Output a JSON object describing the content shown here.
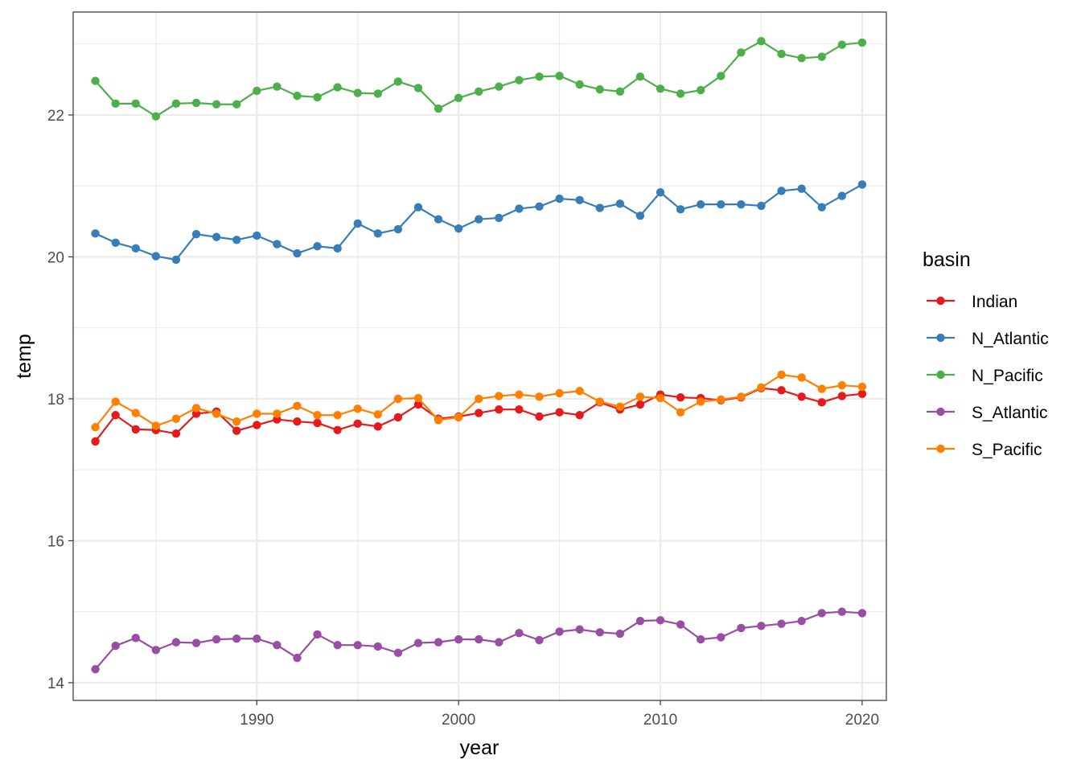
{
  "chart_data": {
    "type": "line",
    "xlabel": "year",
    "ylabel": "temp",
    "xlim": [
      1980.9,
      2021.2
    ],
    "ylim": [
      13.75,
      23.45
    ],
    "x_ticks": [
      1990,
      2000,
      2010,
      2020
    ],
    "y_ticks": [
      14,
      16,
      18,
      20,
      22
    ],
    "x_tick_labels": [
      "1990",
      "2000",
      "2010",
      "2020"
    ],
    "y_tick_labels": [
      "14",
      "16",
      "18",
      "20",
      "22"
    ],
    "grid": true,
    "markers": true,
    "legend": {
      "title": "basin",
      "position": "right"
    },
    "x": [
      1982,
      1983,
      1984,
      1985,
      1986,
      1987,
      1988,
      1989,
      1990,
      1991,
      1992,
      1993,
      1994,
      1995,
      1996,
      1997,
      1998,
      1999,
      2000,
      2001,
      2002,
      2003,
      2004,
      2005,
      2006,
      2007,
      2008,
      2009,
      2010,
      2011,
      2012,
      2013,
      2014,
      2015,
      2016,
      2017,
      2018,
      2019,
      2020
    ],
    "series": [
      {
        "name": "Indian",
        "color": "#e41a1c",
        "values": [
          17.4,
          17.77,
          17.57,
          17.56,
          17.51,
          17.79,
          17.82,
          17.55,
          17.63,
          17.71,
          17.68,
          17.66,
          17.56,
          17.65,
          17.61,
          17.74,
          17.92,
          17.72,
          17.75,
          17.8,
          17.85,
          17.85,
          17.75,
          17.81,
          17.77,
          17.95,
          17.85,
          17.92,
          18.06,
          18.02,
          18.01,
          17.98,
          18.02,
          18.15,
          18.12,
          18.03,
          17.95,
          18.04,
          18.07
        ]
      },
      {
        "name": "N_Atlantic",
        "color": "#377eb8",
        "values": [
          20.33,
          20.2,
          20.12,
          20.01,
          19.96,
          20.32,
          20.28,
          20.24,
          20.3,
          20.18,
          20.05,
          20.15,
          20.12,
          20.47,
          20.33,
          20.39,
          20.7,
          20.53,
          20.4,
          20.53,
          20.55,
          20.68,
          20.71,
          20.82,
          20.8,
          20.69,
          20.75,
          20.58,
          20.91,
          20.67,
          20.74,
          20.74,
          20.74,
          20.72,
          20.93,
          20.96,
          20.7,
          20.86,
          21.02
        ]
      },
      {
        "name": "N_Pacific",
        "color": "#4daf4a",
        "values": [
          22.48,
          22.16,
          22.16,
          21.98,
          22.16,
          22.17,
          22.15,
          22.15,
          22.34,
          22.4,
          22.27,
          22.25,
          22.39,
          22.31,
          22.3,
          22.47,
          22.38,
          22.09,
          22.24,
          22.33,
          22.4,
          22.49,
          22.54,
          22.55,
          22.43,
          22.36,
          22.33,
          22.54,
          22.37,
          22.3,
          22.35,
          22.55,
          22.88,
          23.04,
          22.86,
          22.8,
          22.82,
          22.99,
          23.02
        ]
      },
      {
        "name": "S_Atlantic",
        "color": "#984ea3",
        "values": [
          14.19,
          14.52,
          14.63,
          14.46,
          14.57,
          14.56,
          14.61,
          14.62,
          14.62,
          14.53,
          14.35,
          14.68,
          14.53,
          14.53,
          14.51,
          14.42,
          14.56,
          14.57,
          14.61,
          14.61,
          14.57,
          14.7,
          14.6,
          14.72,
          14.75,
          14.71,
          14.69,
          14.87,
          14.88,
          14.82,
          14.61,
          14.64,
          14.77,
          14.8,
          14.83,
          14.87,
          14.98,
          15.0,
          14.98
        ]
      },
      {
        "name": "S_Pacific",
        "color": "#ff7f00",
        "values": [
          17.6,
          17.96,
          17.8,
          17.62,
          17.72,
          17.87,
          17.79,
          17.68,
          17.79,
          17.79,
          17.9,
          17.77,
          17.77,
          17.86,
          17.78,
          18.0,
          18.01,
          17.7,
          17.74,
          18.0,
          18.04,
          18.06,
          18.03,
          18.08,
          18.11,
          17.96,
          17.89,
          18.03,
          18.01,
          17.81,
          17.96,
          17.99,
          18.03,
          18.16,
          18.34,
          18.3,
          18.14,
          18.19,
          18.17
        ]
      }
    ]
  }
}
